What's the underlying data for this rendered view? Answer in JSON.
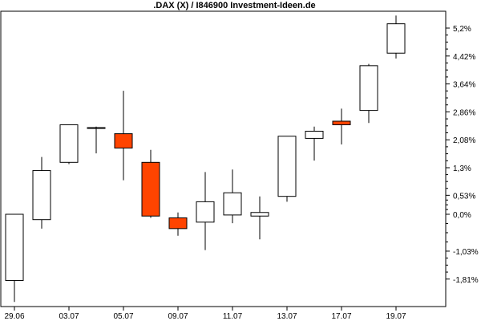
{
  "chart_data": {
    "type": "candlestick",
    "title": ".DAX (X) / I846900 Investment-Ideen.de",
    "y_unit": "%",
    "y_ticks": [
      -1.81,
      -1.03,
      0.0,
      0.53,
      1.3,
      2.08,
      2.86,
      3.64,
      4.42,
      5.2
    ],
    "y_tick_labels": [
      "-1,81%",
      "-1,03%",
      "0,0%",
      "0,53%",
      "1,3%",
      "2,08%",
      "2,86%",
      "3,64%",
      "4,42%",
      "5,2%"
    ],
    "ylim": [
      -2.1,
      5.6
    ],
    "x_tick_labels": [
      "29.06",
      "03.07",
      "05.07",
      "09.07",
      "11.07",
      "13.07",
      "17.07",
      "19.07"
    ],
    "candles": [
      {
        "open": 0.0,
        "close": -1.85,
        "high": 0.0,
        "low": -2.45,
        "color": "#ffffff"
      },
      {
        "open": -0.15,
        "close": 1.22,
        "high": 1.6,
        "low": -0.4,
        "color": "#ffffff"
      },
      {
        "open": 1.45,
        "close": 2.5,
        "high": 2.5,
        "low": 1.4,
        "color": "#ffffff"
      },
      {
        "open": 2.42,
        "close": 2.42,
        "high": 2.45,
        "low": 1.7,
        "color": "#ffffff"
      },
      {
        "open": 2.25,
        "close": 1.85,
        "high": 3.45,
        "low": 0.95,
        "color": "#ff4400"
      },
      {
        "open": 1.45,
        "close": -0.05,
        "high": 1.8,
        "low": -0.1,
        "color": "#ff4400"
      },
      {
        "open": -0.1,
        "close": -0.4,
        "high": 0.05,
        "low": -0.6,
        "color": "#ff4400"
      },
      {
        "open": -0.22,
        "close": 0.35,
        "high": 1.18,
        "low": -1.0,
        "color": "#ffffff"
      },
      {
        "open": -0.02,
        "close": 0.6,
        "high": 1.25,
        "low": -0.25,
        "color": "#ffffff"
      },
      {
        "open": -0.05,
        "close": 0.05,
        "high": 0.5,
        "low": -0.7,
        "color": "#ffffff"
      },
      {
        "open": 0.5,
        "close": 2.18,
        "high": 2.18,
        "low": 0.35,
        "color": "#ffffff"
      },
      {
        "open": 2.12,
        "close": 2.32,
        "high": 2.45,
        "low": 1.5,
        "color": "#ffffff"
      },
      {
        "open": 2.6,
        "close": 2.5,
        "high": 2.95,
        "low": 1.95,
        "color": "#ff4400"
      },
      {
        "open": 2.9,
        "close": 4.15,
        "high": 4.2,
        "low": 2.55,
        "color": "#ffffff"
      },
      {
        "open": 4.5,
        "close": 5.32,
        "high": 5.55,
        "low": 4.35,
        "color": "#ffffff"
      }
    ]
  }
}
